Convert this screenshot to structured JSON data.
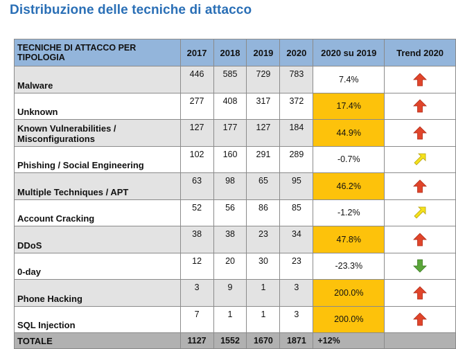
{
  "title": "Distribuzione delle tecniche di attacco",
  "headers": [
    "TECNICHE DI ATTACCO PER TIPOLOGIA",
    "2017",
    "2018",
    "2019",
    "2020",
    "2020 su 2019",
    "Trend 2020"
  ],
  "rows": [
    {
      "name": "Malware",
      "v2017": "446",
      "v2018": "585",
      "v2019": "729",
      "v2020": "783",
      "change": "7.4%",
      "highlight": false,
      "trend": "up-red-arrow-icon"
    },
    {
      "name": "Unknown",
      "v2017": "277",
      "v2018": "408",
      "v2019": "317",
      "v2020": "372",
      "change": "17.4%",
      "highlight": true,
      "trend": "up-red-arrow-icon"
    },
    {
      "name": "Known Vulnerabilities / Misconfigurations",
      "v2017": "127",
      "v2018": "177",
      "v2019": "127",
      "v2020": "184",
      "change": "44.9%",
      "highlight": true,
      "trend": "up-red-arrow-icon"
    },
    {
      "name": "Phishing / Social Engineering",
      "v2017": "102",
      "v2018": "160",
      "v2019": "291",
      "v2020": "289",
      "change": "-0.7%",
      "highlight": false,
      "trend": "diagonal-yellow-arrow-icon"
    },
    {
      "name": "Multiple Techniques / APT",
      "v2017": "63",
      "v2018": "98",
      "v2019": "65",
      "v2020": "95",
      "change": "46.2%",
      "highlight": true,
      "trend": "up-red-arrow-icon"
    },
    {
      "name": "Account Cracking",
      "v2017": "52",
      "v2018": "56",
      "v2019": "86",
      "v2020": "85",
      "change": "-1.2%",
      "highlight": false,
      "trend": "diagonal-yellow-arrow-icon"
    },
    {
      "name": "DDoS",
      "v2017": "38",
      "v2018": "38",
      "v2019": "23",
      "v2020": "34",
      "change": "47.8%",
      "highlight": true,
      "trend": "up-red-arrow-icon"
    },
    {
      "name": "0-day",
      "v2017": "12",
      "v2018": "20",
      "v2019": "30",
      "v2020": "23",
      "change": "-23.3%",
      "highlight": false,
      "trend": "down-green-arrow-icon"
    },
    {
      "name": "Phone Hacking",
      "v2017": "3",
      "v2018": "9",
      "v2019": "1",
      "v2020": "3",
      "change": "200.0%",
      "highlight": true,
      "trend": "up-red-arrow-icon"
    },
    {
      "name": "SQL Injection",
      "v2017": "7",
      "v2018": "1",
      "v2019": "1",
      "v2020": "3",
      "change": "200.0%",
      "highlight": true,
      "trend": "up-red-arrow-icon"
    }
  ],
  "total": {
    "name": "TOTALE",
    "v2017": "1127",
    "v2018": "1552",
    "v2019": "1670",
    "v2020": "1871",
    "change": "+12%"
  },
  "colors": {
    "title": "#2a6fb6",
    "header_bg": "#93b5db",
    "highlight": "#fdc20b",
    "grey_row": "#e3e3e3",
    "total_bg": "#b1b1b1",
    "arrow_up": "#e0452b",
    "arrow_diag": "#f5e11c",
    "arrow_down": "#5aa63a"
  }
}
